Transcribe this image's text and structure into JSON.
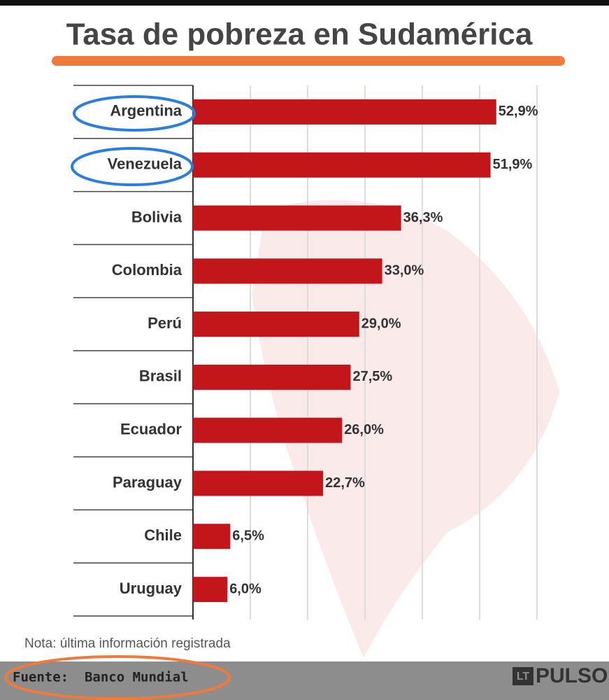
{
  "chart_data": {
    "type": "hbar",
    "title": "Tasa de pobreza en Sudamérica",
    "categories": [
      "Argentina",
      "Venezuela",
      "Bolivia",
      "Colombia",
      "Perú",
      "Brasil",
      "Ecuador",
      "Paraguay",
      "Chile",
      "Uruguay"
    ],
    "values": [
      52.9,
      51.9,
      36.3,
      33.0,
      29.0,
      27.5,
      26.0,
      22.7,
      6.5,
      6.0
    ],
    "value_labels": [
      "52,9%",
      "51,9%",
      "36,3%",
      "33,0%",
      "29,0%",
      "27,5%",
      "26,0%",
      "22,7%",
      "6,5%",
      "6,0%"
    ],
    "color": "#c2161b",
    "xlim": [
      0,
      60
    ],
    "xticks": [
      0,
      10,
      20,
      30,
      40,
      50,
      60
    ],
    "grid": true,
    "note": "Nota: última información registrada",
    "source": "Fuente:  Banco Mundial",
    "logo": {
      "badge": "LT",
      "text": "PULSO"
    }
  }
}
